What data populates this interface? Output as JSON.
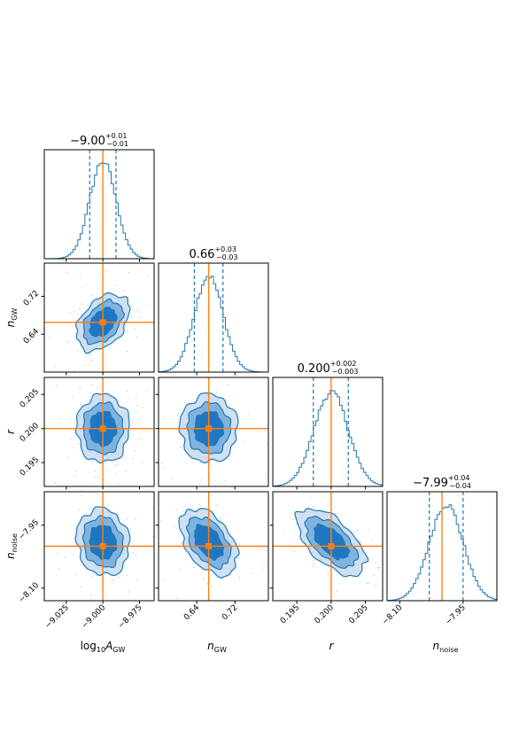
{
  "colors": {
    "hist": "#1f77b4",
    "truth": "#ff7f0e",
    "level1": "#cfe0f1",
    "level2": "#7fb3de",
    "level3": "#1f77c4",
    "contour": "#1f77b4"
  },
  "chart_data": {
    "type": "corner",
    "parameters": [
      {
        "key": "log10_A_GW",
        "label": "log10A_GW",
        "label_parts": [
          "log",
          "10",
          "A",
          "GW"
        ],
        "range": [
          -9.04,
          -8.965
        ],
        "ticks": [
          -9.025,
          -9.0,
          -8.975
        ],
        "tick_labels": [
          "−9.025",
          "−9.000",
          "−8.975"
        ],
        "truth": -9.0,
        "median": -9.0,
        "q_low": -9.009,
        "q_high": -8.991,
        "sigma": 0.009,
        "title": {
          "value": "−9.00",
          "plus": "+0.01",
          "minus": "−0.01"
        }
      },
      {
        "key": "n_GW",
        "label": "n_GW",
        "label_parts": [
          "n",
          "GW"
        ],
        "range": [
          0.56,
          0.79
        ],
        "ticks": [
          0.64,
          0.72
        ],
        "tick_labels": [
          "0.64",
          "0.72"
        ],
        "truth": 0.665,
        "median": 0.665,
        "q_low": 0.635,
        "q_high": 0.695,
        "sigma": 0.03,
        "title": {
          "value": "0.66",
          "plus": "+0.03",
          "minus": "−0.03"
        }
      },
      {
        "key": "r",
        "label": "r",
        "label_parts": [
          "r"
        ],
        "range": [
          0.1915,
          0.2075
        ],
        "ticks": [
          0.195,
          0.2,
          0.205
        ],
        "tick_labels": [
          "0.195",
          "0.200",
          "0.205"
        ],
        "truth": 0.2,
        "median": 0.2,
        "q_low": 0.1974,
        "q_high": 0.2025,
        "sigma": 0.0025,
        "title": {
          "value": "0.200",
          "plus": "+0.002",
          "minus": "−0.003"
        }
      },
      {
        "key": "n_noise",
        "label": "n_noise",
        "label_parts": [
          "n",
          "noise"
        ],
        "range": [
          -8.13,
          -7.87
        ],
        "ticks": [
          -8.1,
          -7.95
        ],
        "tick_labels": [
          "−8.10",
          "−7.95"
        ],
        "truth": -8.0,
        "median": -7.99,
        "q_low": -8.03,
        "q_high": -7.95,
        "sigma": 0.04,
        "title": {
          "value": "−7.99",
          "plus": "+0.04",
          "minus": "−0.04"
        }
      }
    ],
    "correlations": [
      {
        "i": 1,
        "j": 0,
        "rho": 0.4
      },
      {
        "i": 2,
        "j": 0,
        "rho": 0.0
      },
      {
        "i": 2,
        "j": 1,
        "rho": 0.0
      },
      {
        "i": 3,
        "j": 0,
        "rho": -0.1
      },
      {
        "i": 3,
        "j": 1,
        "rho": -0.45
      },
      {
        "i": 3,
        "j": 2,
        "rho": -0.6
      }
    ],
    "contour_levels_sigma": [
      0.5,
      1.0,
      1.5,
      2.0
    ],
    "truth_marker": "square"
  }
}
